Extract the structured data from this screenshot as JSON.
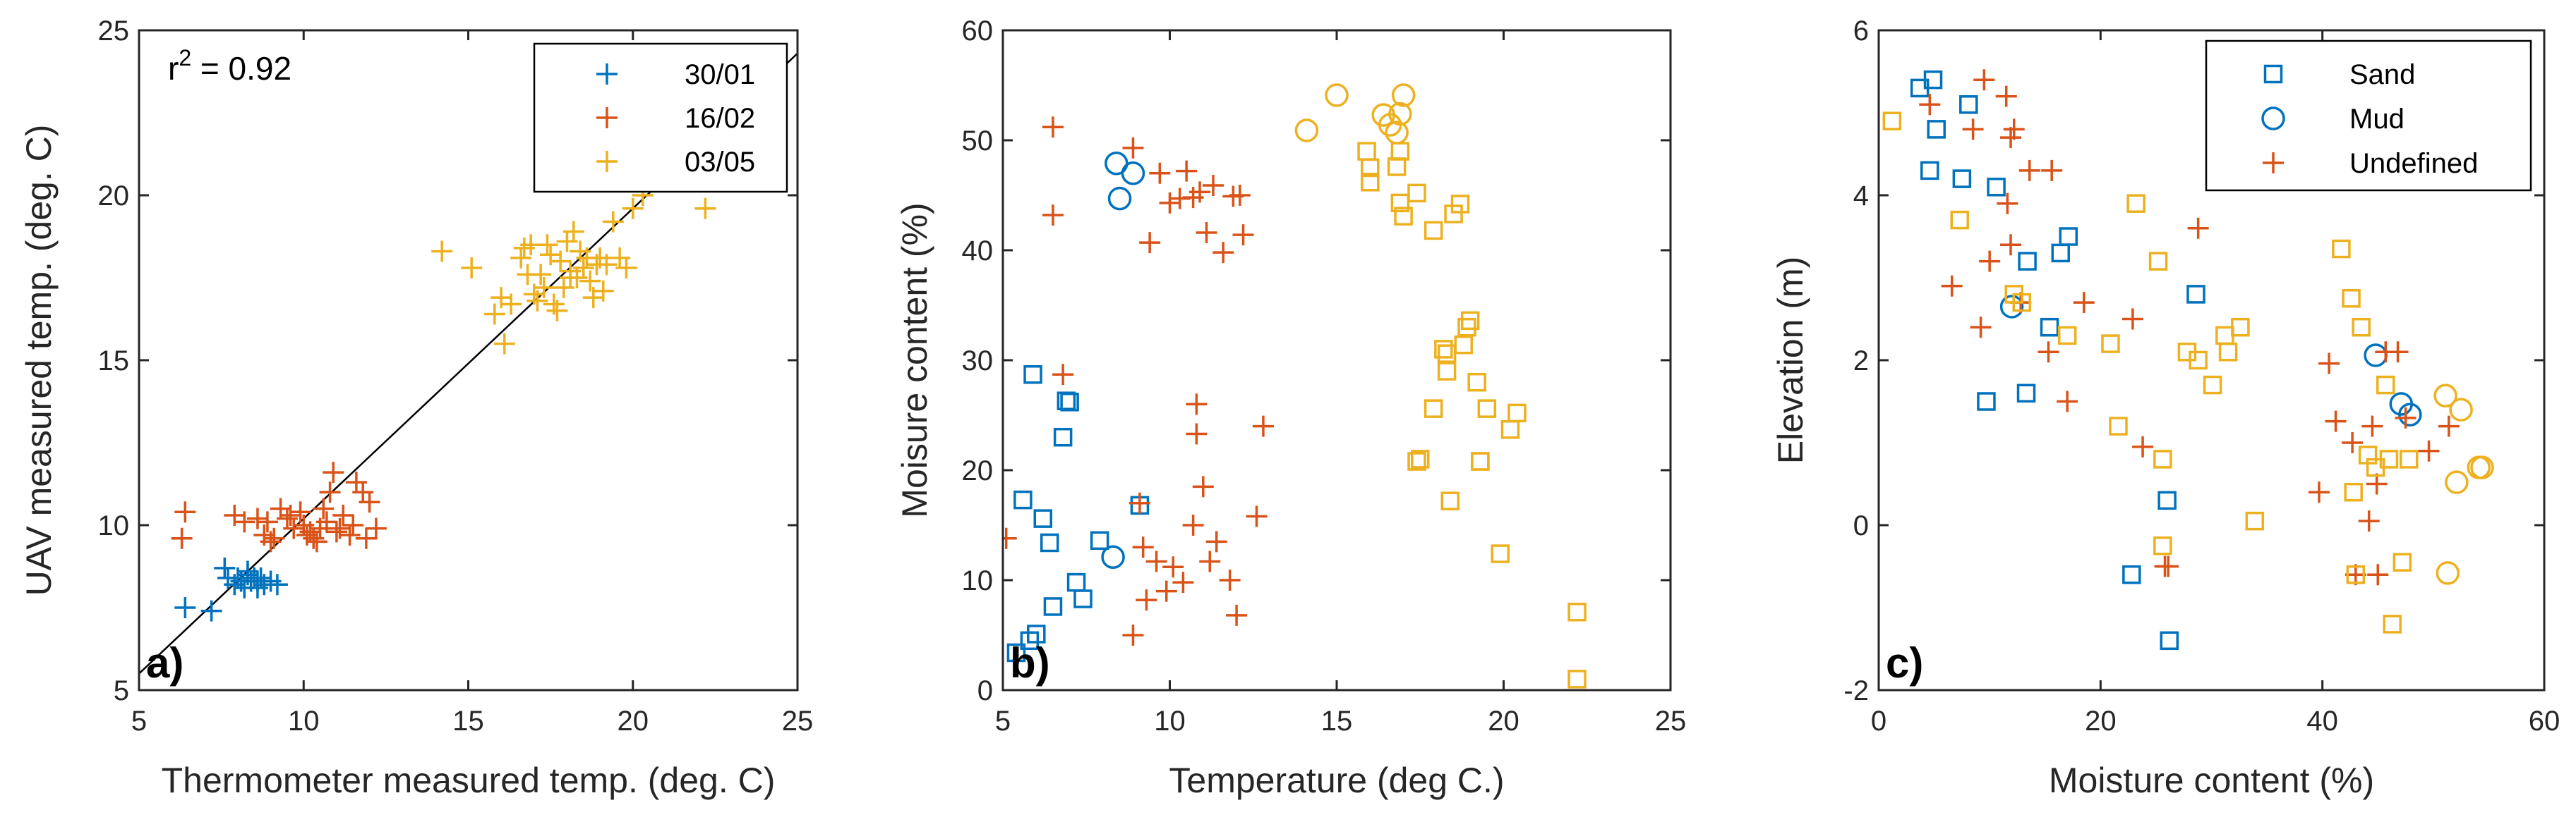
{
  "figure": {
    "colors": {
      "blue": "#0072BD",
      "orange": "#D95319",
      "yellow": "#EDB120",
      "axis": "#262626"
    }
  },
  "chart_data": [
    {
      "panel": "a)",
      "type": "scatter",
      "xlabel": "Thermometer measured temp. (deg. C)",
      "ylabel": "UAV measured temp. (deg. C)",
      "xlim": [
        5,
        25
      ],
      "ylim": [
        5,
        25
      ],
      "xticks": [
        5,
        10,
        15,
        20,
        25
      ],
      "yticks": [
        5,
        10,
        15,
        20,
        25
      ],
      "annotation": "r",
      "annotation_sup": "2",
      "annotation_rest": " = 0.92",
      "legend_position": "top-right",
      "fit_line": {
        "x": [
          5,
          25
        ],
        "y": [
          5.5,
          24.3
        ]
      },
      "series": [
        {
          "name": "30/01",
          "marker": "plus",
          "color": "#0072BD",
          "x": [
            6.4,
            7.2,
            7.6,
            7.9,
            8.0,
            8.1,
            8.2,
            8.3,
            8.4,
            8.5,
            8.6,
            8.7,
            8.8,
            9.0,
            9.2,
            7.7,
            8.3,
            8.6
          ],
          "y": [
            7.5,
            7.4,
            8.7,
            8.2,
            8.4,
            8.3,
            8.1,
            8.5,
            8.3,
            8.4,
            8.3,
            8.4,
            8.2,
            8.3,
            8.2,
            8.4,
            8.6,
            8.1
          ]
        },
        {
          "name": "16/02",
          "marker": "plus",
          "color": "#D95319",
          "x": [
            6.3,
            6.4,
            7.9,
            8.2,
            8.6,
            8.8,
            9.0,
            9.3,
            9.5,
            9.7,
            9.9,
            10.0,
            10.2,
            10.3,
            10.5,
            10.7,
            10.8,
            10.9,
            11.0,
            11.2,
            11.4,
            11.6,
            11.8,
            12.0,
            12.2,
            9.1,
            9.6,
            10.1,
            10.6,
            11.1,
            11.5,
            8.9,
            10.4,
            11.9
          ],
          "y": [
            9.6,
            10.4,
            10.3,
            10.1,
            10.2,
            9.7,
            9.5,
            10.5,
            10.2,
            9.9,
            10.4,
            10.0,
            9.8,
            9.6,
            9.9,
            10.1,
            11.0,
            11.6,
            9.8,
            10.3,
            9.7,
            11.3,
            11.0,
            10.7,
            9.9,
            9.6,
            10.3,
            9.7,
            10.5,
            9.9,
            10.0,
            10.1,
            9.5,
            9.6
          ]
        },
        {
          "name": "03/05",
          "marker": "plus",
          "color": "#EDB120",
          "x": [
            14.2,
            15.1,
            15.8,
            16.0,
            16.1,
            16.3,
            16.6,
            16.8,
            16.9,
            17.0,
            17.1,
            17.2,
            17.4,
            17.5,
            17.6,
            17.7,
            17.8,
            17.9,
            18.0,
            18.1,
            18.2,
            18.3,
            18.4,
            18.5,
            18.6,
            18.7,
            18.8,
            18.9,
            19.0,
            19.2,
            19.4,
            19.6,
            19.8,
            20.0,
            20.3,
            22.2,
            16.7,
            17.3,
            18.1,
            19.1
          ],
          "y": [
            18.3,
            17.8,
            16.4,
            16.9,
            15.5,
            16.7,
            18.1,
            17.6,
            18.5,
            17.0,
            16.8,
            17.6,
            18.5,
            18.2,
            16.7,
            16.5,
            18.0,
            17.2,
            18.6,
            17.7,
            18.9,
            17.5,
            18.3,
            17.8,
            18.1,
            17.4,
            16.9,
            17.9,
            18.1,
            17.9,
            19.2,
            18.1,
            17.8,
            19.6,
            20.0,
            19.6,
            18.4,
            17.2,
            17.5,
            17.1
          ]
        }
      ]
    },
    {
      "panel": "b)",
      "type": "scatter",
      "xlabel": "Temperature (deg C.)",
      "ylabel": "Moisure content (%)",
      "xlim": [
        5,
        25
      ],
      "ylim": [
        0,
        60
      ],
      "xticks": [
        5,
        10,
        15,
        20,
        25
      ],
      "yticks": [
        0,
        10,
        20,
        30,
        40,
        50,
        60
      ],
      "series": [
        {
          "name": "30/01 sand",
          "marker": "square",
          "color": "#0072BD",
          "x": [
            5.6,
            5.9,
            6.0,
            6.2,
            6.4,
            6.8,
            6.9,
            7.0,
            7.2,
            7.4,
            7.9,
            9.1,
            5.8,
            5.4,
            6.5
          ],
          "y": [
            17.3,
            28.7,
            5.1,
            15.6,
            13.4,
            23.0,
            26.3,
            26.2,
            9.8,
            8.3,
            13.6,
            16.8,
            4.5,
            3.4,
            7.6
          ]
        },
        {
          "name": "30/01 mud",
          "marker": "circle",
          "color": "#0072BD",
          "x": [
            8.4,
            8.5,
            8.9,
            8.3
          ],
          "y": [
            47.9,
            44.7,
            47.0,
            12.1
          ]
        },
        {
          "name": "16/02",
          "marker": "plus",
          "color": "#D95319",
          "x": [
            5.1,
            6.5,
            6.5,
            6.8,
            8.9,
            9.1,
            9.4,
            9.7,
            10.0,
            10.3,
            10.5,
            10.7,
            10.9,
            11.1,
            11.3,
            11.6,
            11.9,
            12.1,
            12.2,
            10.8,
            10.8,
            11.0,
            12.8,
            12.6,
            9.3,
            9.6,
            9.9,
            10.1,
            10.4,
            10.7,
            11.2,
            11.4,
            11.8,
            12.0,
            8.9,
            9.2
          ],
          "y": [
            13.8,
            51.2,
            43.2,
            28.7,
            49.3,
            17.0,
            40.7,
            47.0,
            44.3,
            44.7,
            47.2,
            44.8,
            45.3,
            41.6,
            45.9,
            39.8,
            44.9,
            45.0,
            41.4,
            26.0,
            23.3,
            18.5,
            24.0,
            15.8,
            8.2,
            11.7,
            9.0,
            11.2,
            9.8,
            15.0,
            11.7,
            13.5,
            10.0,
            6.8,
            5.0,
            13.0
          ]
        },
        {
          "name": "03/05 sand",
          "marker": "square",
          "color": "#EDB120",
          "x": [
            15.9,
            16.0,
            16.0,
            16.8,
            16.9,
            17.0,
            17.4,
            17.5,
            17.9,
            18.2,
            18.3,
            18.3,
            18.5,
            18.7,
            18.8,
            18.9,
            19.0,
            19.2,
            19.3,
            19.5,
            17.4,
            17.9,
            18.4,
            19.3,
            19.9,
            20.2,
            20.4,
            22.2,
            22.2,
            16.9
          ],
          "y": [
            49.0,
            47.5,
            46.2,
            47.6,
            44.3,
            43.1,
            45.2,
            21.0,
            41.8,
            31.0,
            29.0,
            30.6,
            43.3,
            44.2,
            31.4,
            33.0,
            33.6,
            28.0,
            20.8,
            25.6,
            20.8,
            25.6,
            17.2,
            20.8,
            12.4,
            23.7,
            25.2,
            7.1,
            1.0,
            49.0
          ]
        },
        {
          "name": "03/05 mud",
          "marker": "circle",
          "color": "#EDB120",
          "x": [
            14.1,
            15.0,
            16.4,
            16.6,
            16.8,
            16.9,
            17.0
          ],
          "y": [
            50.9,
            54.1,
            52.3,
            51.4,
            50.7,
            52.4,
            54.1
          ]
        }
      ]
    },
    {
      "panel": "c)",
      "type": "scatter",
      "xlabel": "Moisture content (%)",
      "ylabel": "Elevation (m)",
      "xlim": [
        0,
        60
      ],
      "ylim": [
        -2,
        6
      ],
      "xticks": [
        0,
        20,
        40,
        60
      ],
      "yticks": [
        -2,
        0,
        2,
        4,
        6
      ],
      "legend_position": "top-right",
      "legend": [
        {
          "label": "Sand",
          "marker": "square"
        },
        {
          "label": "Mud",
          "marker": "circle"
        },
        {
          "label": "Undefined",
          "marker": "plus"
        }
      ],
      "series": [
        {
          "name": "Sand blue",
          "marker": "square",
          "color": "#0072BD",
          "x": [
            3.7,
            4.9,
            4.6,
            5.2,
            7.5,
            8.1,
            10.6,
            16.4,
            17.1,
            13.4,
            15.4,
            28.6,
            9.7,
            13.3,
            22.8,
            26.0,
            26.2
          ],
          "y": [
            5.3,
            5.4,
            4.3,
            4.8,
            4.2,
            5.1,
            4.1,
            3.3,
            3.5,
            3.2,
            2.4,
            2.8,
            1.5,
            1.6,
            -0.6,
            0.3,
            -1.4
          ]
        },
        {
          "name": "Mud blue",
          "marker": "circle",
          "color": "#0072BD",
          "x": [
            12.0,
            44.8,
            47.1,
            47.9
          ],
          "y": [
            2.65,
            2.06,
            1.47,
            1.34
          ]
        },
        {
          "name": "Undefined orange",
          "marker": "plus",
          "color": "#D95319",
          "x": [
            4.6,
            6.6,
            8.5,
            9.5,
            9.2,
            10.0,
            11.5,
            11.9,
            12.2,
            11.6,
            11.9,
            12.8,
            13.6,
            15.3,
            15.6,
            17.0,
            18.5,
            23.8,
            22.9,
            25.8,
            28.8,
            39.7,
            40.6,
            41.2,
            42.7,
            44.2,
            44.5,
            45.0,
            46.8,
            47.5,
            49.6,
            51.4,
            45.7,
            43.0,
            44.9,
            26.1
          ],
          "y": [
            5.1,
            2.9,
            4.8,
            5.4,
            2.4,
            3.2,
            5.2,
            4.7,
            4.8,
            3.9,
            3.4,
            2.7,
            4.3,
            2.1,
            4.3,
            1.5,
            2.7,
            0.95,
            2.5,
            -0.5,
            3.6,
            0.4,
            1.96,
            1.26,
            1.0,
            0.05,
            1.2,
            -0.6,
            2.1,
            1.3,
            0.9,
            1.2,
            2.1,
            -0.6,
            0.5,
            -0.5
          ]
        },
        {
          "name": "Sand yellow",
          "marker": "square",
          "color": "#EDB120",
          "x": [
            1.2,
            7.3,
            12.2,
            12.9,
            17.0,
            20.9,
            21.6,
            23.2,
            25.2,
            25.6,
            25.6,
            27.8,
            28.8,
            30.1,
            31.2,
            31.5,
            32.6,
            33.9,
            41.7,
            42.6,
            43.5,
            44.1,
            44.8,
            45.7,
            46.0,
            46.3,
            47.2,
            42.8,
            47.8,
            43.0
          ],
          "y": [
            4.9,
            3.7,
            2.8,
            2.7,
            2.3,
            2.2,
            1.2,
            3.9,
            3.2,
            0.8,
            -0.25,
            2.1,
            2.0,
            1.7,
            2.3,
            2.1,
            2.4,
            0.05,
            3.35,
            2.75,
            2.4,
            0.85,
            0.7,
            1.7,
            0.8,
            -1.2,
            -0.45,
            0.4,
            0.8,
            -0.6
          ]
        },
        {
          "name": "Mud yellow",
          "marker": "circle",
          "color": "#EDB120",
          "x": [
            51.1,
            52.1,
            52.5,
            54.1,
            54.4,
            51.3
          ],
          "y": [
            1.57,
            0.52,
            1.4,
            0.7,
            0.7,
            -0.58
          ]
        }
      ]
    }
  ],
  "panel_a_legend": [
    "30/01",
    "16/02",
    "03/05"
  ]
}
